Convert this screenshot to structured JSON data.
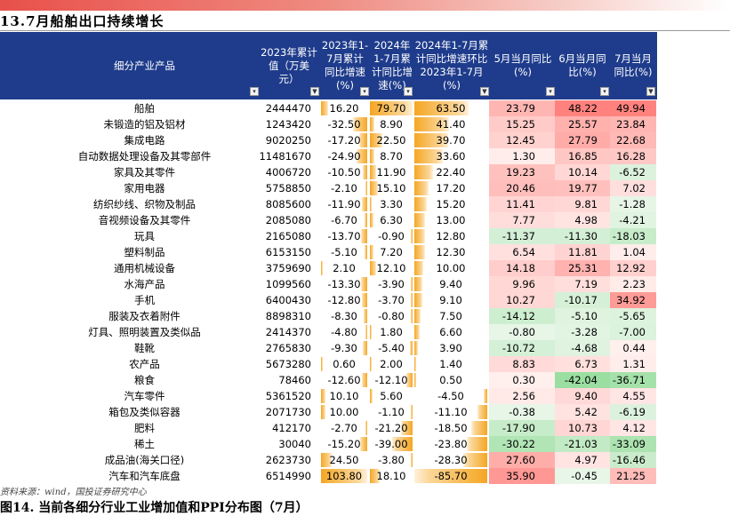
{
  "page_title": "13.7月船舶出口持续增长",
  "headers": {
    "industry": "细分产业产品",
    "value_2023": "2023年累计\n值（万美\n元）",
    "yoy_2023": "2023年1-\n7月累计\n同比增速\n(%)",
    "yoy_2024": "2024年\n1-7月累\n计同比增\n速(%)",
    "change": "2024年1-7月累\n计同比增速环比\n2023年1-7月(%)",
    "may": "5月当月同比\n(%)",
    "jun": "6月当月同\n比(%)",
    "jul": "7月当月\n同比(%)"
  },
  "filter_icons": [
    "dropdown-icon",
    "filter-icon"
  ],
  "rows": [
    {
      "name": "船舶",
      "v2023": "2444470",
      "y2023": "16.20",
      "y2024": "79.70",
      "chg": "63.50",
      "may": "23.79",
      "jun": "48.22",
      "jul": "49.94"
    },
    {
      "name": "未锻造的铝及铝材",
      "v2023": "1243420",
      "y2023": "-32.50",
      "y2024": "8.90",
      "chg": "41.40",
      "may": "15.25",
      "jun": "25.57",
      "jul": "23.84"
    },
    {
      "name": "集成电路",
      "v2023": "9020250",
      "y2023": "-17.20",
      "y2024": "22.50",
      "chg": "39.70",
      "may": "12.45",
      "jun": "27.79",
      "jul": "22.68"
    },
    {
      "name": "自动数据处理设备及其零部件",
      "v2023": "11481670",
      "y2023": "-24.90",
      "y2024": "8.70",
      "chg": "33.60",
      "may": "1.30",
      "jun": "16.85",
      "jul": "16.28"
    },
    {
      "name": "家具及其零件",
      "v2023": "4006720",
      "y2023": "-10.50",
      "y2024": "11.90",
      "chg": "22.40",
      "may": "19.23",
      "jun": "10.14",
      "jul": "-6.52"
    },
    {
      "name": "家用电器",
      "v2023": "5758850",
      "y2023": "-2.10",
      "y2024": "15.10",
      "chg": "17.20",
      "may": "20.46",
      "jun": "19.77",
      "jul": "7.02"
    },
    {
      "name": "纺织纱线、织物及制品",
      "v2023": "8085600",
      "y2023": "-11.90",
      "y2024": "3.30",
      "chg": "15.20",
      "may": "11.41",
      "jun": "9.81",
      "jul": "-1.28"
    },
    {
      "name": "音视频设备及其零件",
      "v2023": "2085080",
      "y2023": "-6.70",
      "y2024": "6.30",
      "chg": "13.00",
      "may": "7.77",
      "jun": "4.98",
      "jul": "-4.21"
    },
    {
      "name": "玩具",
      "v2023": "2165080",
      "y2023": "-13.70",
      "y2024": "-0.90",
      "chg": "12.80",
      "may": "-11.37",
      "jun": "-11.30",
      "jul": "-18.03"
    },
    {
      "name": "塑料制品",
      "v2023": "6153150",
      "y2023": "-5.10",
      "y2024": "7.20",
      "chg": "12.30",
      "may": "6.54",
      "jun": "11.81",
      "jul": "1.04"
    },
    {
      "name": "通用机械设备",
      "v2023": "3759690",
      "y2023": "2.10",
      "y2024": "12.10",
      "chg": "10.00",
      "may": "14.18",
      "jun": "25.31",
      "jul": "12.92"
    },
    {
      "name": "水海产品",
      "v2023": "1099560",
      "y2023": "-13.30",
      "y2024": "-3.90",
      "chg": "9.40",
      "may": "9.96",
      "jun": "7.19",
      "jul": "2.23"
    },
    {
      "name": "手机",
      "v2023": "6400430",
      "y2023": "-12.80",
      "y2024": "-3.70",
      "chg": "9.10",
      "may": "10.27",
      "jun": "-10.17",
      "jul": "34.92"
    },
    {
      "name": "服装及衣着附件",
      "v2023": "8898310",
      "y2023": "-8.30",
      "y2024": "-0.80",
      "chg": "7.50",
      "may": "-14.12",
      "jun": "-5.10",
      "jul": "-5.65"
    },
    {
      "name": "灯具、照明装置及类似品",
      "v2023": "2414370",
      "y2023": "-4.80",
      "y2024": "1.80",
      "chg": "6.60",
      "may": "-0.80",
      "jun": "-3.28",
      "jul": "-7.00"
    },
    {
      "name": "鞋靴",
      "v2023": "2765830",
      "y2023": "-9.30",
      "y2024": "-5.40",
      "chg": "3.90",
      "may": "-10.72",
      "jun": "-4.68",
      "jul": "0.44"
    },
    {
      "name": "农产品",
      "v2023": "5673280",
      "y2023": "0.60",
      "y2024": "2.00",
      "chg": "1.40",
      "may": "8.83",
      "jun": "6.73",
      "jul": "1.31"
    },
    {
      "name": "粮食",
      "v2023": "78460",
      "y2023": "-12.60",
      "y2024": "-12.10",
      "chg": "0.50",
      "may": "0.30",
      "jun": "-42.04",
      "jul": "-36.71"
    },
    {
      "name": "汽车零件",
      "v2023": "5361520",
      "y2023": "10.10",
      "y2024": "5.60",
      "chg": "-4.50",
      "may": "2.56",
      "jun": "9.40",
      "jul": "4.55"
    },
    {
      "name": "箱包及类似容器",
      "v2023": "2071730",
      "y2023": "10.00",
      "y2024": "-1.10",
      "chg": "-11.10",
      "may": "-0.38",
      "jun": "5.42",
      "jul": "-6.19"
    },
    {
      "name": "肥料",
      "v2023": "412170",
      "y2023": "-2.70",
      "y2024": "-21.20",
      "chg": "-18.50",
      "may": "-17.90",
      "jun": "10.73",
      "jul": "4.12"
    },
    {
      "name": "稀土",
      "v2023": "30040",
      "y2023": "-15.20",
      "y2024": "-39.00",
      "chg": "-23.80",
      "may": "-30.22",
      "jun": "-21.03",
      "jul": "-33.09"
    },
    {
      "name": "成品油(海关口径)",
      "v2023": "2623730",
      "y2023": "24.50",
      "y2024": "-3.80",
      "chg": "-28.30",
      "may": "27.60",
      "jun": "4.97",
      "jul": "-16.46"
    },
    {
      "name": "汽车和汽车底盘",
      "v2023": "6514990",
      "y2023": "103.80",
      "y2024": "18.10",
      "chg": "-85.70",
      "may": "35.90",
      "jun": "-0.45",
      "jul": "21.25"
    }
  ],
  "source": "资料来源：wind，国投证券研究中心",
  "next_title": "图14. 当前各细分行业工业增加值和PPI分布图（7月）",
  "colors": {
    "header_bg": "#1f3c8c",
    "bar": "#f5a623",
    "pos_strong": "#f2a6a0",
    "pos_light": "#fbe3e0",
    "neg_strong": "#a6d9a8",
    "neg_light": "#e4f3e4"
  }
}
